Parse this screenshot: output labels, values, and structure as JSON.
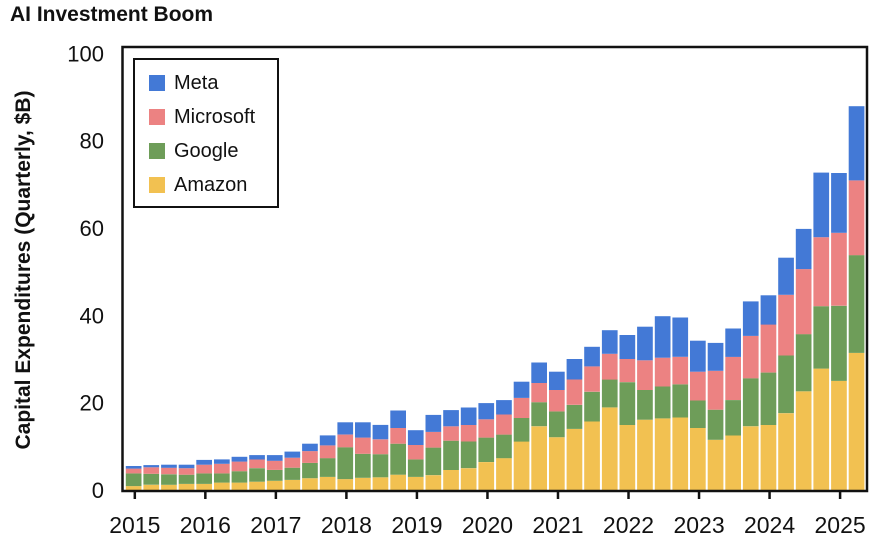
{
  "title": "AI Investment Boom",
  "chart_data": {
    "type": "bar",
    "stacked": true,
    "title": "AI Investment Boom",
    "ylabel": "Capital Expenditures (Quarterly, $B)",
    "xlabel": "",
    "ylim": [
      0,
      100
    ],
    "ytick_values": [
      0,
      20,
      40,
      60,
      80,
      100
    ],
    "ytick_labels": [
      "0",
      "20",
      "40",
      "60",
      "80",
      "100"
    ],
    "x_year_labels": [
      "2015",
      "2016",
      "2017",
      "2018",
      "2019",
      "2020",
      "2021",
      "2022",
      "2023",
      "2024",
      "2025"
    ],
    "categories": [
      "2015 Q1",
      "2015 Q2",
      "2015 Q3",
      "2015 Q4",
      "2016 Q1",
      "2016 Q2",
      "2016 Q3",
      "2016 Q4",
      "2017 Q1",
      "2017 Q2",
      "2017 Q3",
      "2017 Q4",
      "2018 Q1",
      "2018 Q2",
      "2018 Q3",
      "2018 Q4",
      "2019 Q1",
      "2019 Q2",
      "2019 Q3",
      "2019 Q4",
      "2020 Q1",
      "2020 Q2",
      "2020 Q3",
      "2020 Q4",
      "2021 Q1",
      "2021 Q2",
      "2021 Q3",
      "2021 Q4",
      "2022 Q1",
      "2022 Q2",
      "2022 Q3",
      "2022 Q4",
      "2023 Q1",
      "2023 Q2",
      "2023 Q3",
      "2023 Q4",
      "2024 Q1",
      "2024 Q2",
      "2024 Q3",
      "2024 Q4",
      "2025 Q1",
      "2025 Q2"
    ],
    "grid": false,
    "frame": "box",
    "legend_position": "upper-left",
    "legend_order": [
      "Meta",
      "Microsoft",
      "Google",
      "Amazon"
    ],
    "series": [
      {
        "name": "Amazon",
        "color": "#f2c151",
        "values": [
          0.9,
          1.2,
          1.2,
          1.4,
          1.4,
          1.7,
          1.7,
          1.9,
          2.1,
          2.3,
          2.7,
          3.0,
          2.5,
          2.8,
          2.9,
          3.5,
          3.0,
          3.4,
          4.6,
          5.0,
          6.4,
          7.3,
          11.1,
          14.6,
          12.1,
          14.0,
          15.7,
          18.9,
          14.9,
          16.1,
          16.4,
          16.6,
          14.2,
          11.5,
          12.5,
          14.6,
          14.9,
          17.6,
          22.6,
          27.8,
          25.0,
          31.4
        ]
      },
      {
        "name": "Google",
        "color": "#6e9d59",
        "values": [
          2.9,
          2.5,
          2.4,
          2.1,
          2.4,
          2.1,
          2.6,
          3.1,
          2.5,
          2.8,
          3.5,
          4.3,
          7.3,
          5.5,
          5.3,
          7.1,
          4.0,
          6.3,
          6.7,
          6.1,
          5.6,
          5.4,
          5.4,
          5.5,
          5.9,
          5.5,
          6.8,
          6.4,
          9.8,
          6.8,
          7.3,
          7.6,
          6.3,
          6.9,
          8.1,
          11.0,
          12.0,
          13.2,
          13.1,
          14.3,
          17.2,
          22.4
        ]
      },
      {
        "name": "Microsoft",
        "color": "#ec8282",
        "values": [
          1.1,
          1.5,
          1.5,
          1.5,
          2.0,
          2.2,
          2.2,
          2.0,
          2.1,
          2.3,
          2.7,
          2.9,
          2.9,
          3.7,
          3.4,
          3.6,
          3.3,
          3.6,
          3.3,
          3.8,
          4.2,
          4.6,
          4.6,
          4.4,
          4.9,
          5.8,
          5.8,
          5.9,
          5.3,
          6.8,
          6.6,
          6.3,
          6.6,
          8.9,
          9.9,
          9.7,
          11.0,
          13.9,
          14.9,
          15.8,
          16.7,
          17.1
        ]
      },
      {
        "name": "Meta",
        "color": "#4379d6",
        "values": [
          0.6,
          0.5,
          0.7,
          0.8,
          1.1,
          1.0,
          1.1,
          1.0,
          1.3,
          1.4,
          1.7,
          2.3,
          2.8,
          3.5,
          3.3,
          4.0,
          3.4,
          3.9,
          3.7,
          4.0,
          3.7,
          3.3,
          3.7,
          4.7,
          4.2,
          4.7,
          4.5,
          5.4,
          5.5,
          7.7,
          9.5,
          9.0,
          7.1,
          6.4,
          6.5,
          7.9,
          6.7,
          8.5,
          9.2,
          14.8,
          13.7,
          17.0
        ]
      }
    ],
    "axis_color": "#111111",
    "background_color": "#ffffff"
  }
}
